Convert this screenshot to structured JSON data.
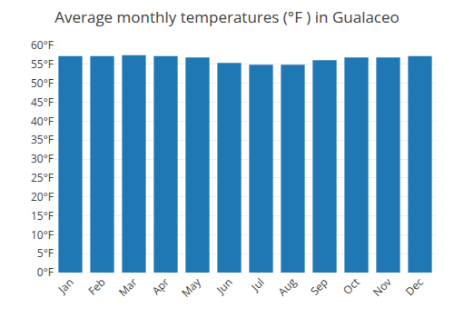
{
  "chart_data": {
    "type": "bar",
    "title": "Average monthly temperatures (°F ) in Gualaceo",
    "categories": [
      "Jan",
      "Feb",
      "Mar",
      "Apr",
      "May",
      "Jun",
      "Jul",
      "Aug",
      "Sep",
      "Oct",
      "Nov",
      "Dec"
    ],
    "values": [
      57.2,
      57.2,
      57.4,
      57.2,
      56.8,
      55.4,
      54.9,
      54.9,
      56.1,
      56.8,
      56.8,
      57.2
    ],
    "ylim": [
      0,
      60
    ],
    "yticks": [
      {
        "value": 0,
        "label": "0°F"
      },
      {
        "value": 5,
        "label": "5°F"
      },
      {
        "value": 10,
        "label": "10°F"
      },
      {
        "value": 15,
        "label": "15°F"
      },
      {
        "value": 20,
        "label": "20°F"
      },
      {
        "value": 25,
        "label": "25°F"
      },
      {
        "value": 30,
        "label": "30°F"
      },
      {
        "value": 35,
        "label": "35°F"
      },
      {
        "value": 40,
        "label": "40°F"
      },
      {
        "value": 45,
        "label": "45°F"
      },
      {
        "value": 50,
        "label": "50°F"
      },
      {
        "value": 55,
        "label": "55°F"
      },
      {
        "value": 60,
        "label": "60°F"
      }
    ],
    "grid": true
  }
}
